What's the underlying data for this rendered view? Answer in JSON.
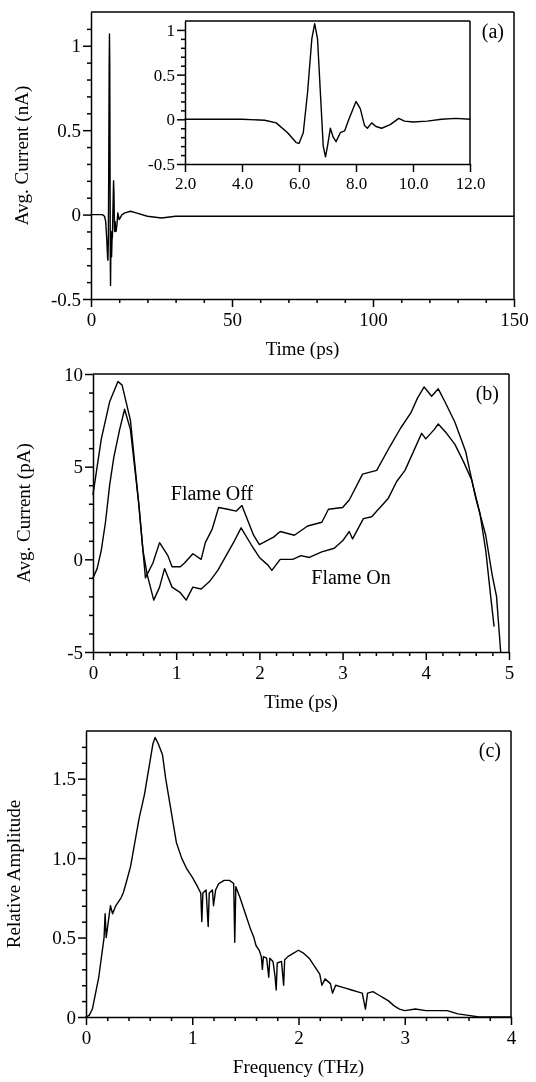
{
  "chart_data": [
    {
      "type": "line",
      "title": "(a)",
      "xlabel": "Time (ps)",
      "ylabel": "Avg. Current (nA)",
      "xlim": [
        0,
        150
      ],
      "ylim": [
        -0.5,
        1.2
      ],
      "xticks": [
        0,
        {
          "value": 10,
          "label": null
        },
        {
          "value": 20,
          "label": null
        },
        {
          "value": 30,
          "label": null
        },
        {
          "value": 40,
          "label": null
        },
        50,
        {
          "value": 60,
          "label": null
        },
        {
          "value": 70,
          "label": null
        },
        {
          "value": 80,
          "label": null
        },
        {
          "value": 90,
          "label": null
        },
        100,
        {
          "value": 110,
          "label": null
        },
        {
          "value": 120,
          "label": null
        },
        {
          "value": 130,
          "label": null
        },
        {
          "value": 140,
          "label": null
        },
        150
      ],
      "yticks": [
        -0.5,
        {
          "value": -0.4,
          "label": null
        },
        {
          "value": -0.3,
          "label": null
        },
        {
          "value": -0.2,
          "label": null
        },
        {
          "value": -0.1,
          "label": null
        },
        0,
        {
          "value": 0.1,
          "label": null
        },
        {
          "value": 0.2,
          "label": null
        },
        {
          "value": 0.3,
          "label": null
        },
        {
          "value": 0.4,
          "label": null
        },
        0.5,
        {
          "value": 0.6,
          "label": null
        },
        {
          "value": 0.7,
          "label": null
        },
        {
          "value": 0.8,
          "label": null
        },
        {
          "value": 0.9,
          "label": null
        },
        1,
        {
          "value": 1.1,
          "label": null
        }
      ],
      "series": [
        {
          "color": "#000000",
          "x": [
            0,
            2,
            4,
            4.8,
            5.2,
            5.6,
            5.9,
            6.0,
            6.15,
            6.3,
            6.45,
            6.55,
            6.65,
            6.75,
            6.85,
            6.93,
            7.0,
            7.1,
            7.2,
            7.3,
            7.45,
            7.6,
            7.75,
            8.0,
            8.15,
            8.3,
            8.4,
            8.55,
            8.7,
            8.9,
            9.2,
            9.5,
            10,
            11,
            12,
            14,
            16,
            20,
            25,
            30,
            40,
            50,
            60,
            70,
            80,
            90,
            100,
            110,
            120,
            130,
            140,
            150
          ],
          "values": [
            0,
            0,
            0,
            -0.01,
            -0.04,
            -0.15,
            -0.26,
            -0.27,
            -0.15,
            0.3,
            0.9,
            1.07,
            0.9,
            0.3,
            -0.3,
            -0.42,
            -0.3,
            -0.1,
            -0.2,
            -0.25,
            -0.15,
            -0.13,
            0,
            0.2,
            0.12,
            -0.07,
            -0.1,
            -0.04,
            -0.08,
            -0.1,
            -0.06,
            0.01,
            -0.03,
            0,
            0.01,
            0.02,
            0.01,
            -0.01,
            -0.02,
            -0.01,
            -0.01,
            -0.01,
            -0.01,
            -0.01,
            -0.01,
            -0.01,
            -0.01,
            -0.01,
            -0.01,
            -0.01,
            -0.01,
            -0.01
          ]
        }
      ]
    },
    {
      "type": "line",
      "xlim": [
        2,
        12
      ],
      "ylim": [
        -0.5,
        1.1
      ],
      "xticks": [
        {
          "value": 2,
          "label": "2.0"
        },
        {
          "value": 4,
          "label": "4.0"
        },
        {
          "value": 6,
          "label": "6.0"
        },
        {
          "value": 8,
          "label": "8.0"
        },
        {
          "value": 10,
          "label": "10.0"
        },
        {
          "value": 12,
          "label": "12.0"
        }
      ],
      "yticks": [
        -0.5,
        {
          "value": -0.4,
          "label": null
        },
        {
          "value": -0.3,
          "label": null
        },
        {
          "value": -0.2,
          "label": null
        },
        {
          "value": -0.1,
          "label": null
        },
        0,
        {
          "value": 0.1,
          "label": null
        },
        {
          "value": 0.2,
          "label": null
        },
        {
          "value": 0.3,
          "label": null
        },
        {
          "value": 0.4,
          "label": null
        },
        0.5,
        {
          "value": 0.6,
          "label": null
        },
        {
          "value": 0.7,
          "label": null
        },
        {
          "value": 0.8,
          "label": null
        },
        {
          "value": 0.9,
          "label": null
        },
        1
      ],
      "series": [
        {
          "color": "#000000",
          "x": [
            2,
            4,
            4.8,
            5.2,
            5.6,
            5.9,
            6.0,
            6.15,
            6.3,
            6.45,
            6.55,
            6.65,
            6.75,
            6.85,
            6.93,
            7.0,
            7.1,
            7.2,
            7.3,
            7.45,
            7.6,
            7.75,
            8.0,
            8.15,
            8.3,
            8.4,
            8.55,
            8.7,
            8.9,
            9.2,
            9.5,
            9.7,
            10,
            10.5,
            11,
            11.5,
            12
          ],
          "values": [
            0,
            0,
            -0.01,
            -0.04,
            -0.15,
            -0.26,
            -0.27,
            -0.15,
            0.3,
            0.9,
            1.07,
            0.9,
            0.3,
            -0.3,
            -0.42,
            -0.3,
            -0.1,
            -0.2,
            -0.25,
            -0.15,
            -0.13,
            0,
            0.2,
            0.12,
            -0.07,
            -0.1,
            -0.04,
            -0.08,
            -0.1,
            -0.06,
            0.01,
            -0.02,
            -0.03,
            -0.02,
            0,
            0.01,
            0
          ]
        }
      ]
    },
    {
      "type": "line",
      "title": "(b)",
      "xlabel": "Time (ps)",
      "ylabel": "Avg. Current (pA)",
      "xlim": [
        0,
        5
      ],
      "ylim": [
        -5,
        10
      ],
      "xticks": [
        0,
        {
          "value": 0.2,
          "label": null
        },
        {
          "value": 0.4,
          "label": null
        },
        {
          "value": 0.6,
          "label": null
        },
        {
          "value": 0.8,
          "label": null
        },
        1,
        {
          "value": 1.2,
          "label": null
        },
        {
          "value": 1.4,
          "label": null
        },
        {
          "value": 1.6,
          "label": null
        },
        {
          "value": 1.8,
          "label": null
        },
        2,
        {
          "value": 2.2,
          "label": null
        },
        {
          "value": 2.4,
          "label": null
        },
        {
          "value": 2.6,
          "label": null
        },
        {
          "value": 2.8,
          "label": null
        },
        3,
        {
          "value": 3.2,
          "label": null
        },
        {
          "value": 3.4,
          "label": null
        },
        {
          "value": 3.6,
          "label": null
        },
        {
          "value": 3.8,
          "label": null
        },
        4,
        {
          "value": 4.2,
          "label": null
        },
        {
          "value": 4.4,
          "label": null
        },
        {
          "value": 4.6,
          "label": null
        },
        {
          "value": 4.8,
          "label": null
        },
        5
      ],
      "yticks": [
        -5,
        {
          "value": -4,
          "label": null
        },
        {
          "value": -3,
          "label": null
        },
        {
          "value": -2,
          "label": null
        },
        {
          "value": -1,
          "label": null
        },
        0,
        {
          "value": 1,
          "label": null
        },
        {
          "value": 2,
          "label": null
        },
        {
          "value": 3,
          "label": null
        },
        {
          "value": 4,
          "label": null
        },
        5,
        {
          "value": 6,
          "label": null
        },
        {
          "value": 7,
          "label": null
        },
        {
          "value": 8,
          "label": null
        },
        {
          "value": 9,
          "label": null
        },
        10
      ],
      "series": [
        {
          "name": "Flame Off",
          "color": "#000000",
          "x": [
            0,
            0.05,
            0.1,
            0.2,
            0.3,
            0.35,
            0.45,
            0.55,
            0.63,
            0.72,
            0.8,
            0.9,
            0.95,
            1.05,
            1.1,
            1.2,
            1.3,
            1.35,
            1.43,
            1.51,
            1.62,
            1.72,
            1.79,
            1.93,
            2.0,
            2.17,
            2.25,
            2.42,
            2.58,
            2.75,
            2.83,
            3.0,
            3.08,
            3.24,
            3.41,
            3.57,
            3.7,
            3.82,
            3.9,
            3.98,
            4.07,
            4.15,
            4.23,
            4.35,
            4.48,
            4.6,
            4.72,
            4.8,
            4.85,
            4.9
          ],
          "values": [
            3.5,
            5,
            6.5,
            8.5,
            9.6,
            9.4,
            7.5,
            3,
            -1,
            -0.2,
            0.9,
            0.2,
            -0.4,
            -0.4,
            -0.2,
            0.3,
            0,
            0.9,
            1.6,
            2.8,
            2.7,
            2.6,
            2.9,
            1.3,
            0.8,
            1.2,
            1.5,
            1.3,
            1.8,
            2,
            2.7,
            2.8,
            3.2,
            4.6,
            4.8,
            6.1,
            7.1,
            7.9,
            8.7,
            9.3,
            8.8,
            9.2,
            8.5,
            7.4,
            5.8,
            3.3,
            1.3,
            -0.9,
            -2,
            -5
          ]
        },
        {
          "name": "Flame On",
          "color": "#000000",
          "x": [
            0,
            0.05,
            0.1,
            0.15,
            0.2,
            0.25,
            0.32,
            0.38,
            0.45,
            0.5,
            0.55,
            0.6,
            0.65,
            0.73,
            0.8,
            0.86,
            0.95,
            1.05,
            1.12,
            1.2,
            1.3,
            1.4,
            1.5,
            1.6,
            1.7,
            1.78,
            1.9,
            2.0,
            2.1,
            2.15,
            2.25,
            2.4,
            2.5,
            2.6,
            2.75,
            2.9,
            3.0,
            3.08,
            3.12,
            3.25,
            3.35,
            3.45,
            3.55,
            3.65,
            3.75,
            3.85,
            3.95,
            4.0,
            4.1,
            4.15,
            4.25,
            4.35,
            4.45,
            4.55,
            4.65,
            4.72,
            4.78,
            4.82
          ],
          "values": [
            -1,
            -0.5,
            0.5,
            2,
            4,
            5.5,
            7,
            8.1,
            7,
            5,
            3,
            0.5,
            -0.8,
            -2.2,
            -1.5,
            -0.5,
            -1.5,
            -1.8,
            -2.2,
            -1.5,
            -1.6,
            -1.2,
            -0.6,
            0.2,
            1,
            1.7,
            0.8,
            0.1,
            -0.3,
            -0.6,
            0,
            0,
            0.2,
            0.1,
            0.4,
            0.6,
            1,
            1.5,
            1.1,
            2.2,
            2.3,
            2.8,
            3.3,
            4.2,
            4.8,
            5.8,
            6.8,
            6.5,
            7,
            7.3,
            6.8,
            6.2,
            5.3,
            4.3,
            2.5,
            0.5,
            -2,
            -3.6
          ]
        }
      ]
    },
    {
      "type": "line",
      "title": "(c)",
      "xlabel": "Frequency (THz)",
      "ylabel": "Relative Amplitude",
      "xlim": [
        0,
        4
      ],
      "ylim": [
        0,
        1.8
      ],
      "xticks": [
        0,
        {
          "value": 0.2,
          "label": null
        },
        {
          "value": 0.4,
          "label": null
        },
        {
          "value": 0.6,
          "label": null
        },
        {
          "value": 0.8,
          "label": null
        },
        1,
        {
          "value": 1.2,
          "label": null
        },
        {
          "value": 1.4,
          "label": null
        },
        {
          "value": 1.6,
          "label": null
        },
        {
          "value": 1.8,
          "label": null
        },
        2,
        {
          "value": 2.2,
          "label": null
        },
        {
          "value": 2.4,
          "label": null
        },
        {
          "value": 2.6,
          "label": null
        },
        {
          "value": 2.8,
          "label": null
        },
        3,
        {
          "value": 3.2,
          "label": null
        },
        {
          "value": 3.4,
          "label": null
        },
        {
          "value": 3.6,
          "label": null
        },
        {
          "value": 3.8,
          "label": null
        },
        4
      ],
      "yticks": [
        0,
        {
          "value": 0.1,
          "label": null
        },
        {
          "value": 0.2,
          "label": null
        },
        {
          "value": 0.3,
          "label": null
        },
        {
          "value": 0.4,
          "label": null
        },
        0.5,
        {
          "value": 0.6,
          "label": null
        },
        {
          "value": 0.7,
          "label": null
        },
        {
          "value": 0.8,
          "label": null
        },
        {
          "value": 0.9,
          "label": null
        },
        {
          "value": 1,
          "label": "1.0"
        },
        {
          "value": 1.1,
          "label": null
        },
        {
          "value": 1.2,
          "label": null
        },
        {
          "value": 1.3,
          "label": null
        },
        {
          "value": 1.4,
          "label": null
        },
        1.5,
        {
          "value": 1.6,
          "label": null
        },
        {
          "value": 1.7,
          "label": null
        }
      ],
      "series": [
        {
          "color": "#000000",
          "x": [
            0,
            0.03,
            0.06,
            0.09,
            0.12,
            0.15,
            0.17,
            0.18,
            0.19,
            0.21,
            0.23,
            0.25,
            0.28,
            0.3,
            0.33,
            0.35,
            0.38,
            0.42,
            0.46,
            0.5,
            0.55,
            0.6,
            0.63,
            0.65,
            0.68,
            0.72,
            0.75,
            0.8,
            0.85,
            0.9,
            0.95,
            1.0,
            1.05,
            1.08,
            1.09,
            1.1,
            1.13,
            1.15,
            1.16,
            1.19,
            1.2,
            1.22,
            1.25,
            1.3,
            1.35,
            1.39,
            1.4,
            1.41,
            1.45,
            1.5,
            1.55,
            1.58,
            1.6,
            1.63,
            1.65,
            1.66,
            1.67,
            1.7,
            1.72,
            1.73,
            1.76,
            1.78,
            1.79,
            1.8,
            1.84,
            1.86,
            1.87,
            1.9,
            1.95,
            2.0,
            2.05,
            2.1,
            2.15,
            2.2,
            2.22,
            2.25,
            2.3,
            2.32,
            2.35,
            2.4,
            2.45,
            2.5,
            2.55,
            2.6,
            2.63,
            2.65,
            2.7,
            2.75,
            2.8,
            2.85,
            2.9,
            2.95,
            3.0,
            3.1,
            3.2,
            3.3,
            3.4,
            3.5,
            3.6,
            3.7,
            3.8,
            4.0
          ],
          "values": [
            0,
            0.01,
            0.05,
            0.15,
            0.25,
            0.4,
            0.5,
            0.65,
            0.5,
            0.6,
            0.7,
            0.65,
            0.7,
            0.72,
            0.75,
            0.78,
            0.85,
            0.95,
            1.1,
            1.25,
            1.4,
            1.6,
            1.72,
            1.76,
            1.72,
            1.65,
            1.5,
            1.3,
            1.1,
            1.0,
            0.93,
            0.88,
            0.82,
            0.78,
            0.6,
            0.78,
            0.8,
            0.57,
            0.78,
            0.8,
            0.7,
            0.8,
            0.84,
            0.86,
            0.86,
            0.84,
            0.47,
            0.82,
            0.75,
            0.65,
            0.55,
            0.5,
            0.45,
            0.42,
            0.38,
            0.3,
            0.38,
            0.37,
            0.25,
            0.37,
            0.35,
            0.25,
            0.17,
            0.34,
            0.35,
            0.2,
            0.36,
            0.38,
            0.4,
            0.42,
            0.4,
            0.37,
            0.32,
            0.27,
            0.2,
            0.24,
            0.21,
            0.15,
            0.2,
            0.19,
            0.18,
            0.17,
            0.16,
            0.15,
            0.05,
            0.15,
            0.16,
            0.14,
            0.12,
            0.1,
            0.07,
            0.05,
            0.04,
            0.05,
            0.04,
            0.04,
            0.04,
            0.02,
            0.01,
            0,
            0,
            0
          ]
        }
      ]
    }
  ]
}
